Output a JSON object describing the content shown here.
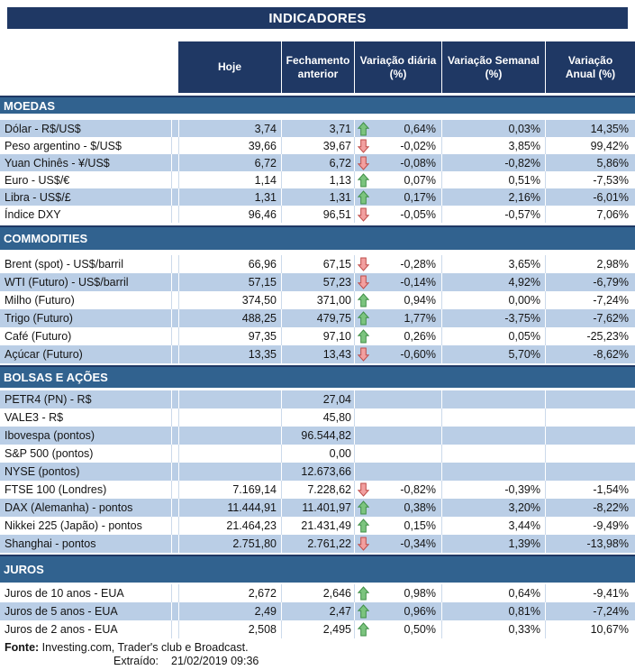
{
  "title": "INDICADORES",
  "colors": {
    "header_navy": "#1F3864",
    "section_bar_blue": "#31628F",
    "row_light_blue": "#BACEE6",
    "arrow_up_fill": "#7CC47F",
    "arrow_up_border": "#3E8E46",
    "arrow_down_fill": "#F2A0A0",
    "arrow_down_border": "#BE4B48"
  },
  "icons": {
    "up": "up-arrow-icon",
    "down": "down-arrow-icon"
  },
  "chart_data": {
    "type": "table",
    "columns": [
      "",
      "Hoje",
      "Fechamento anterior",
      "Variação diária (%)",
      "Variação Semanal (%)",
      "Variação Anual (%)"
    ],
    "sections": [
      {
        "name": "MOEDAS",
        "rows": [
          {
            "label": "Dólar - R$/US$",
            "hoje": "3,74",
            "fechamento": "3,71",
            "arrow": "up",
            "diaria": "0,64%",
            "semanal": "0,03%",
            "anual": "14,35%"
          },
          {
            "label": "Peso argentino - $/US$",
            "hoje": "39,66",
            "fechamento": "39,67",
            "arrow": "down",
            "diaria": "-0,02%",
            "semanal": "3,85%",
            "anual": "99,42%"
          },
          {
            "label": "Yuan Chinês - ¥/US$",
            "hoje": "6,72",
            "fechamento": "6,72",
            "arrow": "down",
            "diaria": "-0,08%",
            "semanal": "-0,82%",
            "anual": "5,86%"
          },
          {
            "label": "Euro - US$/€",
            "hoje": "1,14",
            "fechamento": "1,13",
            "arrow": "up",
            "diaria": "0,07%",
            "semanal": "0,51%",
            "anual": "-7,53%"
          },
          {
            "label": "Libra - US$/£",
            "hoje": "1,31",
            "fechamento": "1,31",
            "arrow": "up",
            "diaria": "0,17%",
            "semanal": "2,16%",
            "anual": "-6,01%"
          },
          {
            "label": "Índice DXY",
            "hoje": "96,46",
            "fechamento": "96,51",
            "arrow": "down",
            "diaria": "-0,05%",
            "semanal": "-0,57%",
            "anual": "7,06%"
          }
        ]
      },
      {
        "name": "COMMODITIES",
        "rows": [
          {
            "label": "Brent (spot) - US$/barril",
            "hoje": "66,96",
            "fechamento": "67,15",
            "arrow": "down",
            "diaria": "-0,28%",
            "semanal": "3,65%",
            "anual": "2,98%"
          },
          {
            "label": "WTI (Futuro) - US$/barril",
            "hoje": "57,15",
            "fechamento": "57,23",
            "arrow": "down",
            "diaria": "-0,14%",
            "semanal": "4,92%",
            "anual": "-6,79%"
          },
          {
            "label": "Milho (Futuro)",
            "hoje": "374,50",
            "fechamento": "371,00",
            "arrow": "up",
            "diaria": "0,94%",
            "semanal": "0,00%",
            "anual": "-7,24%"
          },
          {
            "label": "Trigo (Futuro)",
            "hoje": "488,25",
            "fechamento": "479,75",
            "arrow": "up",
            "diaria": "1,77%",
            "semanal": "-3,75%",
            "anual": "-7,62%"
          },
          {
            "label": "Café (Futuro)",
            "hoje": "97,35",
            "fechamento": "97,10",
            "arrow": "up",
            "diaria": "0,26%",
            "semanal": "0,05%",
            "anual": "-25,23%"
          },
          {
            "label": "Açúcar (Futuro)",
            "hoje": "13,35",
            "fechamento": "13,43",
            "arrow": "down",
            "diaria": "-0,60%",
            "semanal": "5,70%",
            "anual": "-8,62%"
          }
        ]
      },
      {
        "name": "BOLSAS E AÇÕES",
        "rows": [
          {
            "label": "PETR4 (PN) - R$",
            "hoje": "",
            "fechamento": "27,04",
            "arrow": "",
            "diaria": "",
            "semanal": "",
            "anual": ""
          },
          {
            "label": "VALE3 - R$",
            "hoje": "",
            "fechamento": "45,80",
            "arrow": "",
            "diaria": "",
            "semanal": "",
            "anual": ""
          },
          {
            "label": "Ibovespa (pontos)",
            "hoje": "",
            "fechamento": "96.544,82",
            "arrow": "",
            "diaria": "",
            "semanal": "",
            "anual": ""
          },
          {
            "label": "S&P 500 (pontos)",
            "hoje": "",
            "fechamento": "0,00",
            "arrow": "",
            "diaria": "",
            "semanal": "",
            "anual": ""
          },
          {
            "label": "NYSE (pontos)",
            "hoje": "",
            "fechamento": "12.673,66",
            "arrow": "",
            "diaria": "",
            "semanal": "",
            "anual": ""
          },
          {
            "label": "FTSE 100 (Londres)",
            "hoje": "7.169,14",
            "fechamento": "7.228,62",
            "arrow": "down",
            "diaria": "-0,82%",
            "semanal": "-0,39%",
            "anual": "-1,54%"
          },
          {
            "label": "DAX (Alemanha) - pontos",
            "hoje": "11.444,91",
            "fechamento": "11.401,97",
            "arrow": "up",
            "diaria": "0,38%",
            "semanal": "3,20%",
            "anual": "-8,22%"
          },
          {
            "label": "Nikkei 225 (Japão) - pontos",
            "hoje": "21.464,23",
            "fechamento": "21.431,49",
            "arrow": "up",
            "diaria": "0,15%",
            "semanal": "3,44%",
            "anual": "-9,49%"
          },
          {
            "label": "Shanghai - pontos",
            "hoje": "2.751,80",
            "fechamento": "2.761,22",
            "arrow": "down",
            "diaria": "-0,34%",
            "semanal": "1,39%",
            "anual": "-13,98%"
          }
        ]
      },
      {
        "name": "JUROS",
        "rows": [
          {
            "label": "Juros de 10 anos - EUA",
            "hoje": "2,672",
            "fechamento": "2,646",
            "arrow": "up",
            "diaria": "0,98%",
            "semanal": "0,64%",
            "anual": "-9,41%"
          },
          {
            "label": "Juros de 5 anos - EUA",
            "hoje": "2,49",
            "fechamento": "2,47",
            "arrow": "up",
            "diaria": "0,96%",
            "semanal": "0,81%",
            "anual": "-7,24%"
          },
          {
            "label": "Juros de 2 anos - EUA",
            "hoje": "2,508",
            "fechamento": "2,495",
            "arrow": "up",
            "diaria": "0,50%",
            "semanal": "0,33%",
            "anual": "10,67%"
          }
        ]
      }
    ]
  },
  "footer": {
    "fonte_label": "Fonte:",
    "fonte_text": "Investing.com, Trader's club e Broadcast.",
    "extraido_label": "Extraído:",
    "extraido_value": "21/02/2019 09:36"
  }
}
